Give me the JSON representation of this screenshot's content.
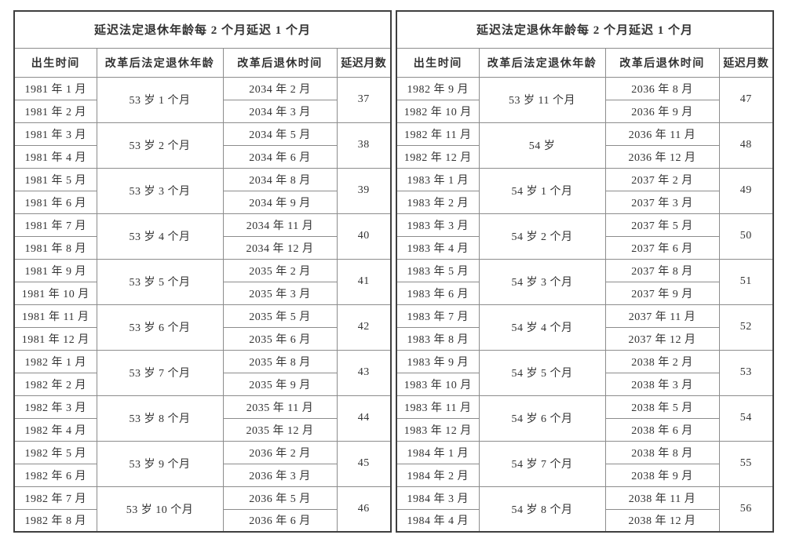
{
  "colors": {
    "background": "#ffffff",
    "text": "#333333",
    "border_outer": "#3f3f3f",
    "border_inner": "#8c8c8c"
  },
  "tables": [
    {
      "title": "延迟法定退休年龄每 2 个月延迟 1 个月",
      "columns": [
        "出生时间",
        "改革后法定退休年龄",
        "改革后退休时间",
        "延迟月数"
      ],
      "groups": [
        {
          "births": [
            "1981 年 1 月",
            "1981 年 2 月"
          ],
          "age": "53 岁 1 个月",
          "retires": [
            "2034 年 2 月",
            "2034 年 3 月"
          ],
          "delay": "37"
        },
        {
          "births": [
            "1981 年 3 月",
            "1981 年 4 月"
          ],
          "age": "53 岁 2 个月",
          "retires": [
            "2034 年 5 月",
            "2034 年 6 月"
          ],
          "delay": "38"
        },
        {
          "births": [
            "1981 年 5 月",
            "1981 年 6 月"
          ],
          "age": "53 岁 3 个月",
          "retires": [
            "2034 年 8 月",
            "2034 年 9 月"
          ],
          "delay": "39"
        },
        {
          "births": [
            "1981 年 7 月",
            "1981 年 8 月"
          ],
          "age": "53 岁 4 个月",
          "retires": [
            "2034 年 11 月",
            "2034 年 12 月"
          ],
          "delay": "40"
        },
        {
          "births": [
            "1981 年 9 月",
            "1981 年 10 月"
          ],
          "age": "53 岁 5 个月",
          "retires": [
            "2035 年 2 月",
            "2035 年 3 月"
          ],
          "delay": "41"
        },
        {
          "births": [
            "1981 年 11 月",
            "1981 年 12 月"
          ],
          "age": "53 岁 6 个月",
          "retires": [
            "2035 年 5 月",
            "2035 年 6 月"
          ],
          "delay": "42"
        },
        {
          "births": [
            "1982 年 1 月",
            "1982 年 2 月"
          ],
          "age": "53 岁 7 个月",
          "retires": [
            "2035 年 8 月",
            "2035 年 9 月"
          ],
          "delay": "43"
        },
        {
          "births": [
            "1982 年 3 月",
            "1982 年 4 月"
          ],
          "age": "53 岁 8 个月",
          "retires": [
            "2035 年 11 月",
            "2035 年 12 月"
          ],
          "delay": "44"
        },
        {
          "births": [
            "1982 年 5 月",
            "1982 年 6 月"
          ],
          "age": "53 岁 9 个月",
          "retires": [
            "2036 年 2 月",
            "2036 年 3 月"
          ],
          "delay": "45"
        },
        {
          "births": [
            "1982 年 7 月",
            "1982 年 8 月"
          ],
          "age": "53 岁 10 个月",
          "retires": [
            "2036 年 5 月",
            "2036 年 6 月"
          ],
          "delay": "46"
        }
      ]
    },
    {
      "title": "延迟法定退休年龄每 2 个月延迟 1 个月",
      "columns": [
        "出生时间",
        "改革后法定退休年龄",
        "改革后退休时间",
        "延迟月数"
      ],
      "groups": [
        {
          "births": [
            "1982 年 9 月",
            "1982 年 10 月"
          ],
          "age": "53 岁 11 个月",
          "retires": [
            "2036 年 8 月",
            "2036 年 9 月"
          ],
          "delay": "47"
        },
        {
          "births": [
            "1982 年 11 月",
            "1982 年 12 月"
          ],
          "age": "54 岁",
          "retires": [
            "2036 年 11 月",
            "2036 年 12 月"
          ],
          "delay": "48"
        },
        {
          "births": [
            "1983 年 1 月",
            "1983 年 2 月"
          ],
          "age": "54 岁 1 个月",
          "retires": [
            "2037 年 2 月",
            "2037 年 3 月"
          ],
          "delay": "49"
        },
        {
          "births": [
            "1983 年 3 月",
            "1983 年 4 月"
          ],
          "age": "54 岁 2 个月",
          "retires": [
            "2037 年 5 月",
            "2037 年 6 月"
          ],
          "delay": "50"
        },
        {
          "births": [
            "1983 年 5 月",
            "1983 年 6 月"
          ],
          "age": "54 岁 3 个月",
          "retires": [
            "2037 年 8 月",
            "2037 年 9 月"
          ],
          "delay": "51"
        },
        {
          "births": [
            "1983 年 7 月",
            "1983 年 8 月"
          ],
          "age": "54 岁 4 个月",
          "retires": [
            "2037 年 11 月",
            "2037 年 12 月"
          ],
          "delay": "52"
        },
        {
          "births": [
            "1983 年 9 月",
            "1983 年 10 月"
          ],
          "age": "54 岁 5 个月",
          "retires": [
            "2038 年 2 月",
            "2038 年 3 月"
          ],
          "delay": "53"
        },
        {
          "births": [
            "1983 年 11 月",
            "1983 年 12 月"
          ],
          "age": "54 岁 6 个月",
          "retires": [
            "2038 年 5 月",
            "2038 年 6 月"
          ],
          "delay": "54"
        },
        {
          "births": [
            "1984 年 1 月",
            "1984 年 2 月"
          ],
          "age": "54 岁 7 个月",
          "retires": [
            "2038 年 8 月",
            "2038 年 9 月"
          ],
          "delay": "55"
        },
        {
          "births": [
            "1984 年 3 月",
            "1984 年 4 月"
          ],
          "age": "54 岁 8 个月",
          "retires": [
            "2038 年 11 月",
            "2038 年 12 月"
          ],
          "delay": "56"
        }
      ]
    }
  ]
}
